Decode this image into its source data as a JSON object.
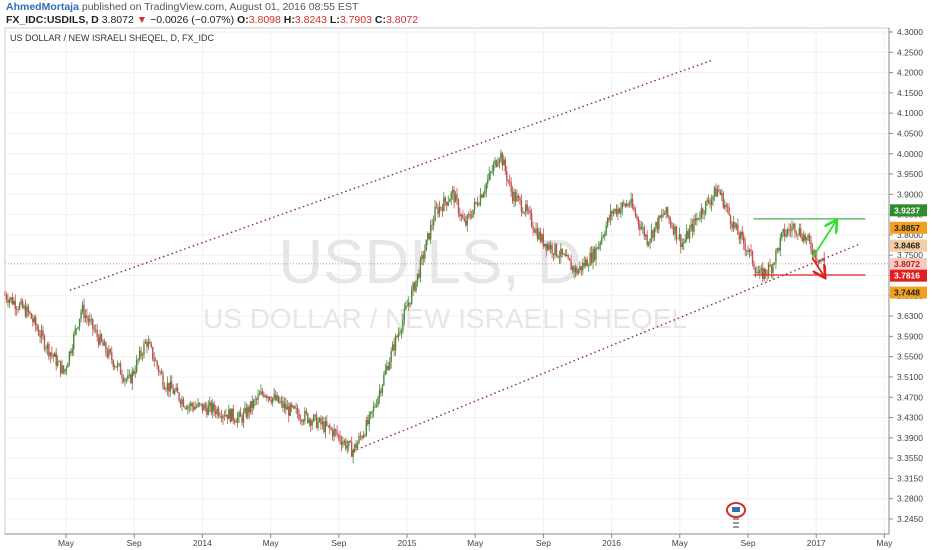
{
  "header": {
    "author": "AhmedMortaja",
    "published_text": "published on TradingView.com, August 01, 2016 08:55 EST",
    "symbol": "FX_IDC:USDILS, D",
    "last_price": "3.8072",
    "change_arrow": "▼",
    "change": "−0.0026 (−0.07%)",
    "open_label": "O:",
    "open": "3.8098",
    "high_label": "H:",
    "high": "3.8243",
    "low_label": "L:",
    "low": "3.7903",
    "close_label": "C:",
    "close": "3.8072"
  },
  "chart_data": {
    "type": "candlestick",
    "title": "US DOLLAR / NEW ISRAELI SHEQEL, D, FX_IDC",
    "watermark_symbol": "USDILS, D",
    "watermark_name": "US DOLLAR / NEW ISRAELI SHEQEL",
    "ylim": [
      3.22,
      4.32
    ],
    "y_ticks": [
      "4.3000",
      "4.2500",
      "4.2000",
      "4.1500",
      "4.1000",
      "4.0500",
      "4.0000",
      "3.9500",
      "3.9000",
      "3.8500",
      "3.8000",
      "3.7500",
      "3.7000",
      "3.6700",
      "3.6300",
      "3.5900",
      "3.5500",
      "3.5100",
      "3.4700",
      "3.4300",
      "3.3900",
      "3.3550",
      "3.3150",
      "3.2800",
      "3.2450"
    ],
    "x_ticks": [
      "May",
      "Sep",
      "2014",
      "May",
      "Sep",
      "2015",
      "May",
      "Sep",
      "2016",
      "May",
      "Sep",
      "2017",
      "May"
    ],
    "price_path": [
      [
        0,
        3.74
      ],
      [
        4,
        3.7
      ],
      [
        7,
        3.63
      ],
      [
        10,
        3.57
      ],
      [
        13,
        3.71
      ],
      [
        17,
        3.62
      ],
      [
        21,
        3.55
      ],
      [
        24,
        3.64
      ],
      [
        27,
        3.55
      ],
      [
        31,
        3.5
      ],
      [
        36,
        3.49
      ],
      [
        40,
        3.47
      ],
      [
        44,
        3.53
      ],
      [
        48,
        3.49
      ],
      [
        52,
        3.47
      ],
      [
        56,
        3.44
      ],
      [
        59,
        3.4
      ],
      [
        62,
        3.47
      ],
      [
        66,
        3.63
      ],
      [
        70,
        3.78
      ],
      [
        73,
        3.92
      ],
      [
        76,
        3.96
      ],
      [
        78,
        3.89
      ],
      [
        82,
        3.99
      ],
      [
        84,
        4.05
      ],
      [
        86,
        3.96
      ],
      [
        88,
        3.93
      ],
      [
        91,
        3.86
      ],
      [
        94,
        3.83
      ],
      [
        97,
        3.79
      ],
      [
        100,
        3.83
      ],
      [
        103,
        3.92
      ],
      [
        106,
        3.94
      ],
      [
        109,
        3.86
      ],
      [
        112,
        3.92
      ],
      [
        115,
        3.85
      ],
      [
        118,
        3.92
      ],
      [
        121,
        3.97
      ],
      [
        124,
        3.88
      ],
      [
        126,
        3.84
      ],
      [
        128,
        3.78
      ],
      [
        130,
        3.8
      ],
      [
        132,
        3.87
      ],
      [
        134,
        3.89
      ],
      [
        136,
        3.86
      ],
      [
        138,
        3.82
      ],
      [
        139,
        3.81
      ]
    ],
    "badges": [
      {
        "value": "3.9237",
        "color": "#2e8b2e",
        "text_color": "#ffffff"
      },
      {
        "value": "3.8857",
        "color": "#f2a020",
        "text_color": "#222222"
      },
      {
        "value": "3.8468",
        "color": "#f5cfa0",
        "text_color": "#222222"
      },
      {
        "value": "3.8072",
        "color": "#f7c9c0",
        "text_color": "#b02020"
      },
      {
        "value": "3.7816",
        "color": "#e02020",
        "text_color": "#ffffff"
      },
      {
        "value": "3.7448",
        "color": "#f2a020",
        "text_color": "#222222"
      }
    ],
    "horizontal_lines": [
      {
        "value": 3.905,
        "color": "#4caf50"
      },
      {
        "value": 3.783,
        "color": "#e02020"
      },
      {
        "value": 3.8072,
        "color": "#e06060",
        "dotted": true
      }
    ],
    "channel": {
      "upper": {
        "from": [
          11,
          3.75
        ],
        "to": [
          120,
          4.25
        ]
      },
      "lower": {
        "from": [
          59,
          3.4
        ],
        "to": [
          145,
          3.85
        ]
      },
      "color": "#8b2e3a"
    },
    "arrows": [
      {
        "from": [
          137,
          3.82
        ],
        "to": [
          141,
          3.9
        ],
        "color": "#33dd33"
      },
      {
        "from": [
          137,
          3.82
        ],
        "to": [
          139,
          3.78
        ],
        "color": "#e02020"
      }
    ],
    "colors": {
      "up": "#4a8a3a",
      "down": "#c0504d",
      "grid": "#f0f0f0",
      "axis": "#888888"
    }
  }
}
